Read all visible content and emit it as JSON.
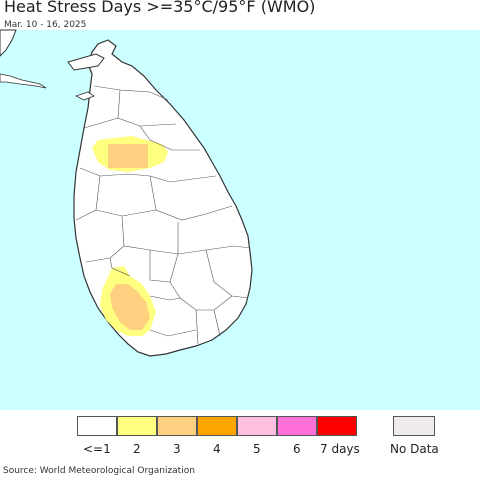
{
  "title": "Heat Stress Days >=35°C/95°F (WMO)",
  "date_range": "Mar. 10 - 16, 2025",
  "legend": {
    "items": [
      {
        "label": "<=1",
        "color": "#ffffff"
      },
      {
        "label": "2",
        "color": "#ffff80"
      },
      {
        "label": "3",
        "color": "#ffd080"
      },
      {
        "label": "4",
        "color": "#ffa500"
      },
      {
        "label": "5",
        "color": "#ffc0e0"
      },
      {
        "label": "6",
        "color": "#ff70d8"
      },
      {
        "label": "7 days",
        "color": "#ff0000"
      }
    ],
    "no_data": {
      "label": "No Data",
      "color": "#eeeaee"
    }
  },
  "source": "Source: World Meteorological Organization",
  "colors": {
    "sea": "#ccffff",
    "land": "#ffffff",
    "border": "#333333"
  }
}
